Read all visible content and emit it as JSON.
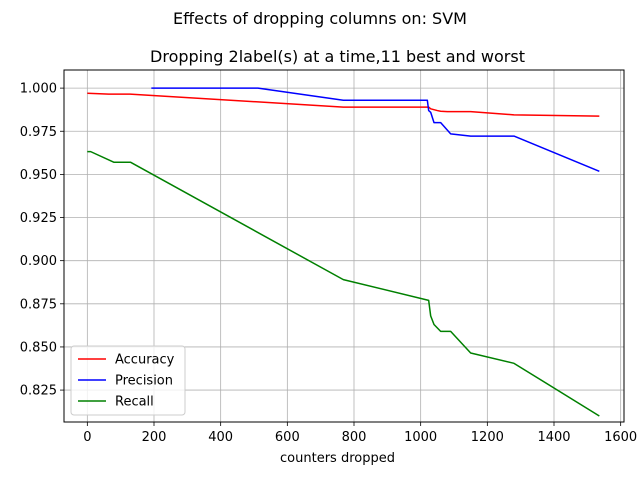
{
  "chart_data": {
    "type": "line",
    "suptitle": "Effects of dropping columns on: SVM",
    "title": "Dropping 2label(s) at a time,11 best and worst",
    "xlabel": "counters dropped",
    "ylabel": "",
    "xlim": [
      -70,
      1610
    ],
    "ylim": [
      0.8065,
      1.0105
    ],
    "xticks": [
      0,
      200,
      400,
      600,
      800,
      1000,
      1200,
      1400,
      1600
    ],
    "xtick_labels": [
      "0",
      "200",
      "400",
      "600",
      "800",
      "1000",
      "1200",
      "1400",
      "1600"
    ],
    "yticks": [
      0.825,
      0.85,
      0.875,
      0.9,
      0.925,
      0.95,
      0.975,
      1.0
    ],
    "ytick_labels": [
      "0.825",
      "0.850",
      "0.875",
      "0.900",
      "0.925",
      "0.950",
      "0.975",
      "1.000"
    ],
    "grid": true,
    "legend_position": "lower-left",
    "series": [
      {
        "name": "Accuracy",
        "color": "#ff0000",
        "x": [
          0,
          64,
          128,
          768,
          1024,
          1030,
          1040,
          1050,
          1060,
          1080,
          1150,
          1280,
          1536
        ],
        "y": [
          0.997,
          0.9965,
          0.9965,
          0.989,
          0.989,
          0.988,
          0.9875,
          0.987,
          0.9866,
          0.9864,
          0.9864,
          0.9845,
          0.9838
        ]
      },
      {
        "name": "Precision",
        "color": "#0000ff",
        "x": [
          192,
          512,
          768,
          1020,
          1024,
          1030,
          1040,
          1060,
          1090,
          1150,
          1280,
          1536
        ],
        "y": [
          1.0,
          1.0,
          0.993,
          0.993,
          0.987,
          0.986,
          0.98,
          0.98,
          0.9735,
          0.9722,
          0.9722,
          0.9518
        ]
      },
      {
        "name": "Recall",
        "color": "#008000",
        "x": [
          0,
          10,
          80,
          130,
          768,
          1024,
          1030,
          1040,
          1060,
          1090,
          1150,
          1280,
          1536
        ],
        "y": [
          0.9632,
          0.9632,
          0.957,
          0.957,
          0.889,
          0.877,
          0.868,
          0.863,
          0.859,
          0.859,
          0.8465,
          0.8405,
          0.81
        ]
      }
    ]
  }
}
